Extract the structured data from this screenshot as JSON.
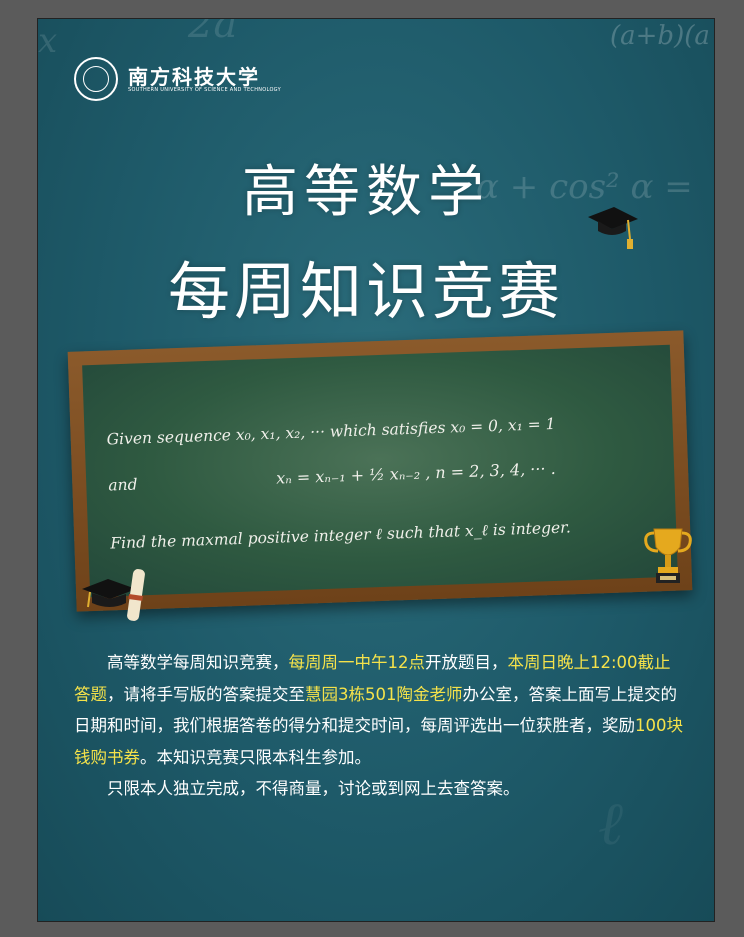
{
  "university": {
    "name_cn": "南方科技大学",
    "name_en": "SOUTHERN UNIVERSITY OF SCIENCE AND TECHNOLOGY"
  },
  "background_formulas": [
    "2a",
    "(a+b)(a",
    "α + cos² α =",
    "x",
    "ℓ"
  ],
  "title": {
    "line1": "高等数学",
    "line2": "每周知识竞赛"
  },
  "chalkboard": {
    "line1": "Given sequence x₀, x₁, x₂, ··· which satisfies  x₀ = 0,  x₁ = 1",
    "line2_word": "and",
    "line2_formula": "xₙ =  xₙ₋₁ +  ½ xₙ₋₂  ,  n = 2, 3, 4, ··· .",
    "line3": "Find the maxmal positive integer ℓ such that  x_ℓ  is integer."
  },
  "description": {
    "p1_a": "高等数学每周知识竞赛，",
    "p1_b": "每周周一中午12点",
    "p1_c": "开放题目，",
    "p1_d": "本周日晚上12:00截止答题",
    "p1_e": "，请将手写版的答案提交至",
    "p1_f": "慧园3栋501陶金老师",
    "p1_g": "办公室，答案上面写上提交的日期和时间，我们根据答卷的得分和提交时间，每周评选出一位获胜者，奖励",
    "p1_h": "100块钱购书券",
    "p1_i": "。本知识竞赛只限本科生参加。",
    "p2": "只限本人独立完成，不得商量，讨论或到网上去查答案。"
  },
  "colors": {
    "background": "#1e5a69",
    "highlight": "#f5e24a",
    "board": "#2f5a41",
    "frame": "#7a4a1f"
  },
  "icons": [
    "graduation-cap-icon",
    "trophy-icon",
    "diploma-scroll-icon",
    "university-seal-icon"
  ]
}
